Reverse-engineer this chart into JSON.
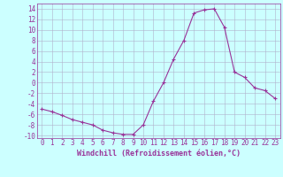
{
  "x": [
    0,
    1,
    2,
    3,
    4,
    5,
    6,
    7,
    8,
    9,
    10,
    11,
    12,
    13,
    14,
    15,
    16,
    17,
    18,
    19,
    20,
    21,
    22,
    23
  ],
  "y": [
    -5,
    -5.5,
    -6.2,
    -7,
    -7.5,
    -8,
    -9,
    -9.5,
    -9.8,
    -9.8,
    -8,
    -3.5,
    0,
    4.5,
    8,
    13.2,
    13.8,
    14,
    10.5,
    2,
    1,
    -1,
    -1.5,
    -3
  ],
  "line_color": "#993399",
  "marker": "+",
  "bg_color": "#ccffff",
  "grid_color": "#b0b0cc",
  "xlabel": "Windchill (Refroidissement éolien,°C)",
  "xlim": [
    -0.5,
    23.5
  ],
  "ylim": [
    -10.5,
    15.0
  ],
  "yticks": [
    -10,
    -8,
    -6,
    -4,
    -2,
    0,
    2,
    4,
    6,
    8,
    10,
    12,
    14
  ],
  "xticks": [
    0,
    1,
    2,
    3,
    4,
    5,
    6,
    7,
    8,
    9,
    10,
    11,
    12,
    13,
    14,
    15,
    16,
    17,
    18,
    19,
    20,
    21,
    22,
    23
  ],
  "tick_color": "#993399",
  "label_color": "#993399",
  "font_family": "monospace",
  "tick_fontsize": 5.5,
  "xlabel_fontsize": 6.0
}
